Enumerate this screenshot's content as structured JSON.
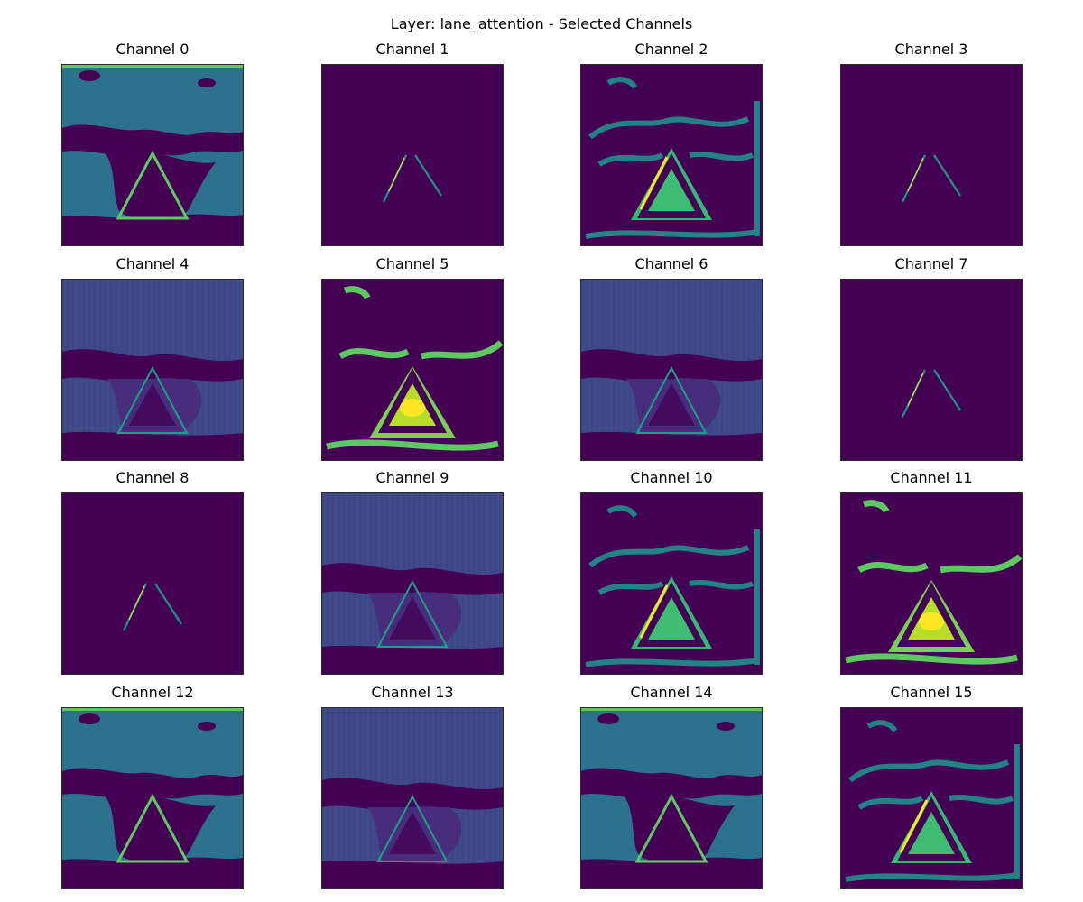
{
  "figure": {
    "suptitle": "Layer: lane_attention - Selected Channels",
    "colormap": "viridis",
    "colormap_stops": [
      "#440154",
      "#3b528b",
      "#21918c",
      "#5ec962",
      "#fde725"
    ]
  },
  "channels": [
    {
      "title": "Channel 0",
      "style": "broad"
    },
    {
      "title": "Channel 1",
      "style": "lines"
    },
    {
      "title": "Channel 2",
      "style": "edges"
    },
    {
      "title": "Channel 3",
      "style": "lines"
    },
    {
      "title": "Channel 4",
      "style": "textured"
    },
    {
      "title": "Channel 5",
      "style": "bright"
    },
    {
      "title": "Channel 6",
      "style": "textured"
    },
    {
      "title": "Channel 7",
      "style": "lines"
    },
    {
      "title": "Channel 8",
      "style": "lines"
    },
    {
      "title": "Channel 9",
      "style": "textured"
    },
    {
      "title": "Channel 10",
      "style": "edges"
    },
    {
      "title": "Channel 11",
      "style": "bright"
    },
    {
      "title": "Channel 12",
      "style": "broad"
    },
    {
      "title": "Channel 13",
      "style": "textured"
    },
    {
      "title": "Channel 14",
      "style": "broad"
    },
    {
      "title": "Channel 15",
      "style": "edges"
    }
  ]
}
